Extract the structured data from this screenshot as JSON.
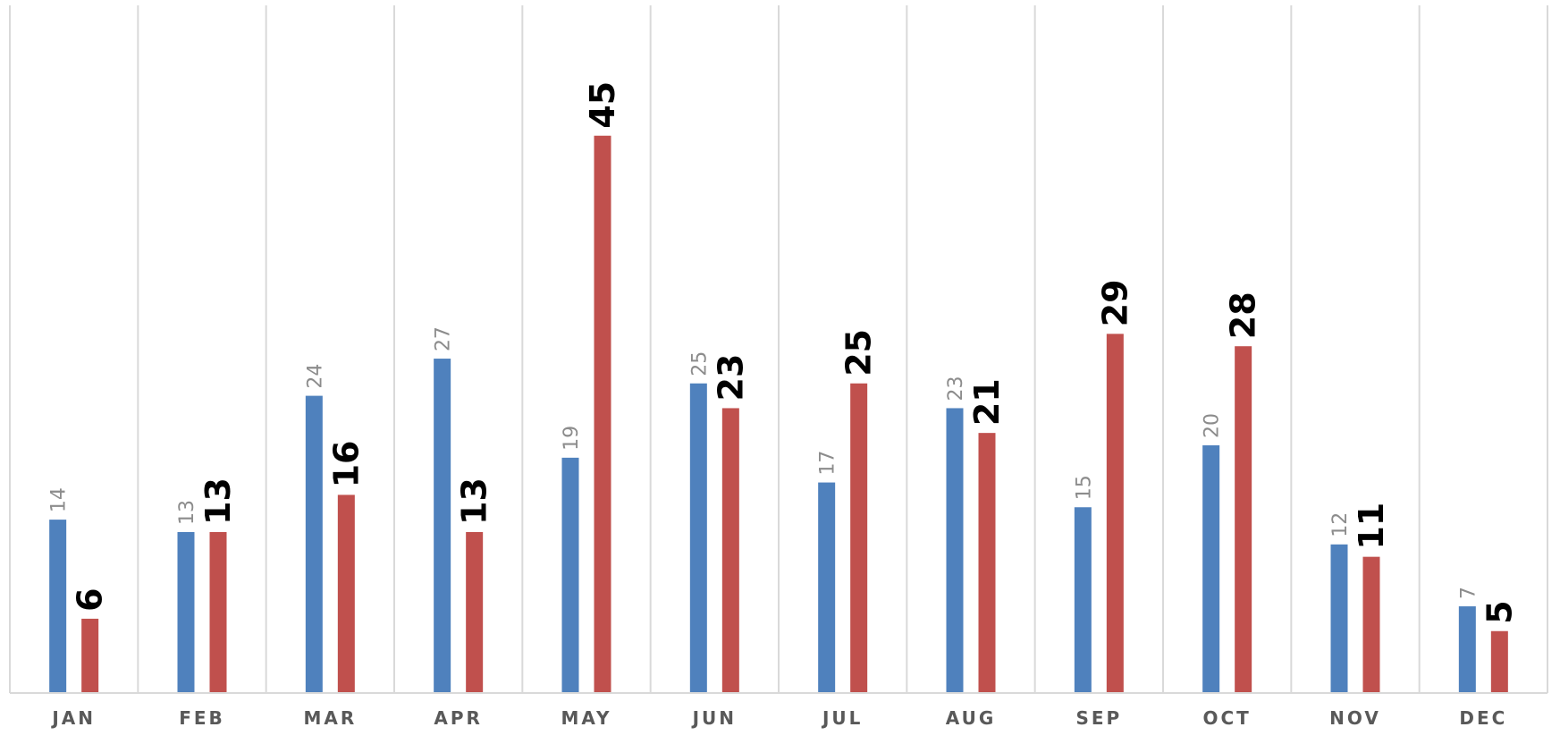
{
  "chart_data": {
    "type": "bar",
    "categories": [
      "JAN",
      "FEB",
      "MAR",
      "APR",
      "MAY",
      "JUN",
      "JUL",
      "AUG",
      "SEP",
      "OCT",
      "NOV",
      "DEC"
    ],
    "series": [
      {
        "values": [
          14,
          13,
          24,
          27,
          19,
          25,
          17,
          23,
          15,
          20,
          12,
          7
        ],
        "color": "#4f81bd"
      },
      {
        "values": [
          6,
          13,
          16,
          13,
          45,
          23,
          25,
          21,
          29,
          28,
          11,
          5
        ],
        "color": "#c0504d"
      }
    ],
    "title": "",
    "xlabel": "",
    "ylabel": "",
    "ylim": [
      0,
      50
    ],
    "grid": "vertical category separators",
    "legend": "none",
    "data_labels": "rotated 90° above each bar"
  }
}
